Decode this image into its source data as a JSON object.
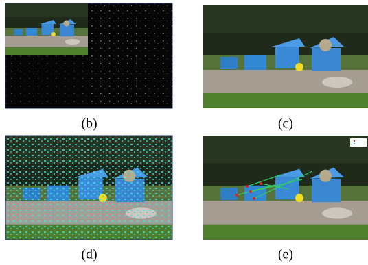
{
  "panels": [
    {
      "caption": "(b)"
    },
    {
      "caption": "(c)"
    },
    {
      "caption": "(d)"
    },
    {
      "caption": "(e)"
    }
  ]
}
